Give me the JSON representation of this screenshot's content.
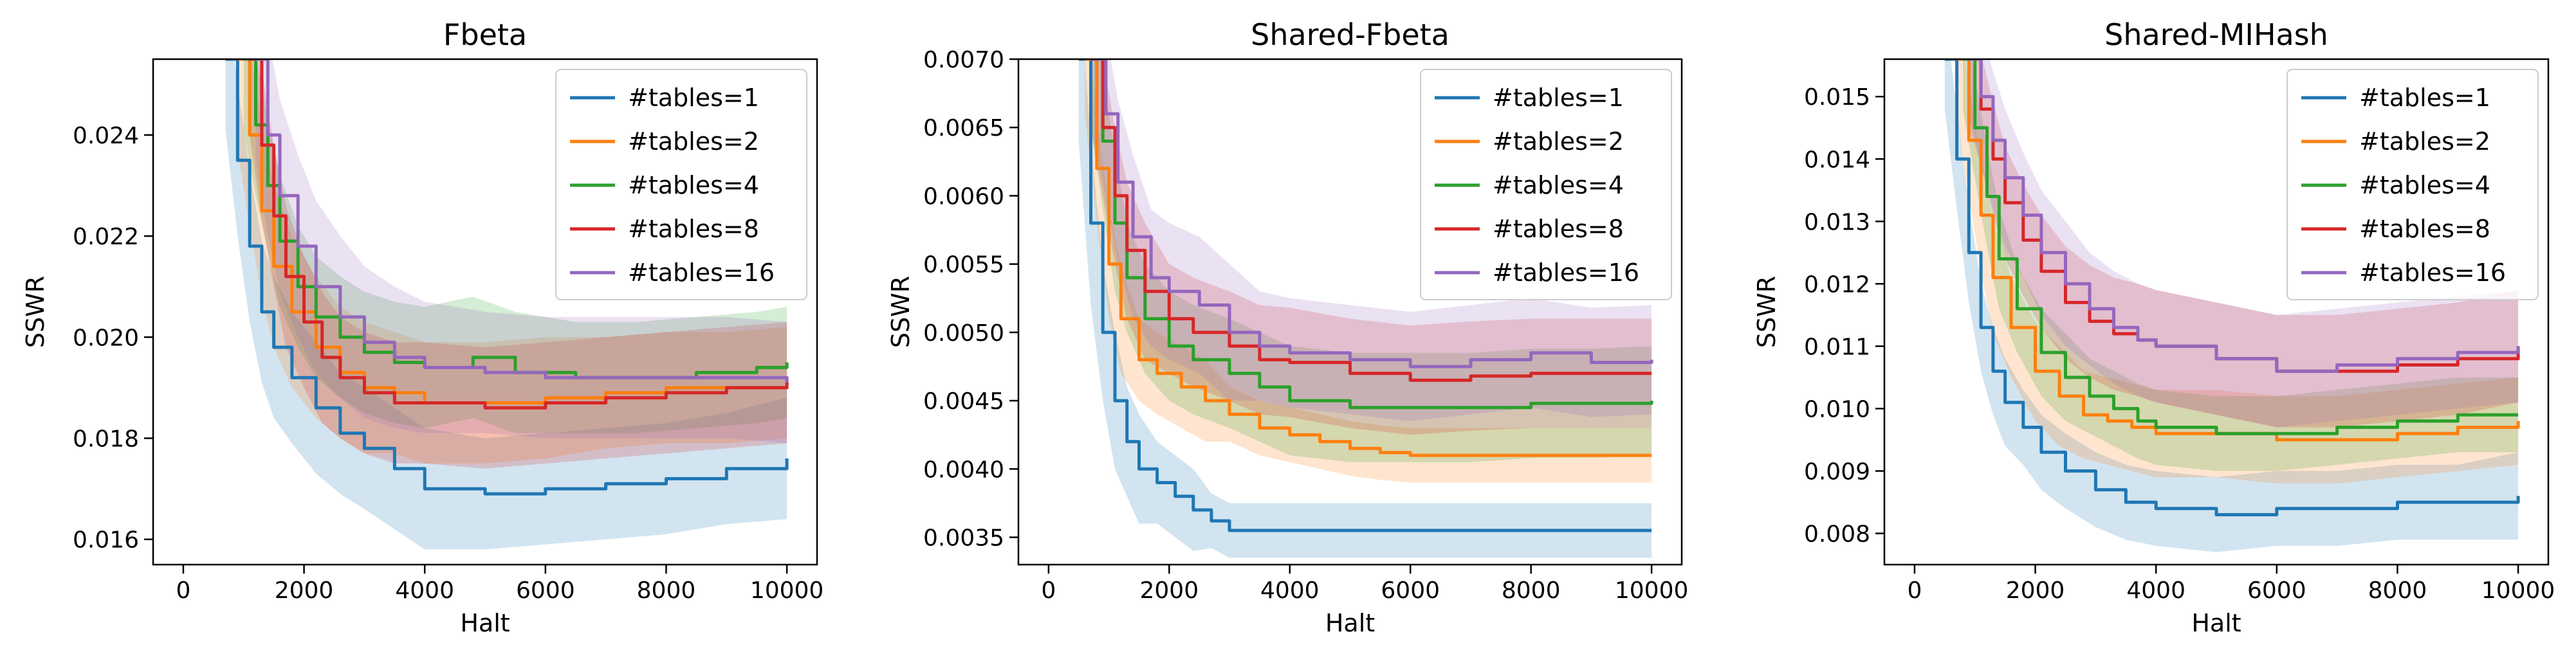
{
  "chart_data": [
    {
      "type": "line",
      "title": "Fbeta",
      "xlabel": "Halt",
      "ylabel": "SSWR",
      "xlim": [
        -500,
        10500
      ],
      "ylim": [
        0.0155,
        0.0255
      ],
      "xticks": [
        0,
        2000,
        4000,
        6000,
        8000,
        10000
      ],
      "xtick_labels": [
        "0",
        "2000",
        "4000",
        "6000",
        "8000",
        "10000"
      ],
      "yticks": [
        0.016,
        0.018,
        0.02,
        0.022,
        0.024
      ],
      "ytick_labels": [
        "0.016",
        "0.018",
        "0.020",
        "0.022",
        "0.024"
      ],
      "legend": "top-right",
      "grid": false,
      "band": "shaded spread around each series",
      "series": [
        {
          "name": "#tables=1",
          "color": "#1f77b4",
          "x": [
            700,
            900,
            1100,
            1300,
            1500,
            1800,
            2200,
            2600,
            3000,
            3500,
            4000,
            5000,
            6000,
            7000,
            8000,
            9000,
            10000
          ],
          "y": [
            0.0255,
            0.0235,
            0.0218,
            0.0205,
            0.0198,
            0.0192,
            0.0186,
            0.0181,
            0.0178,
            0.0174,
            0.017,
            0.0169,
            0.017,
            0.0171,
            0.0172,
            0.0174,
            0.0176
          ],
          "band": [
            0.0014,
            0.0015,
            0.0015,
            0.0014,
            0.0014,
            0.0013,
            0.0013,
            0.0012,
            0.0012,
            0.0012,
            0.0012,
            0.0011,
            0.0011,
            0.0011,
            0.0011,
            0.0011,
            0.0012
          ]
        },
        {
          "name": "#tables=2",
          "color": "#ff7f0e",
          "x": [
            900,
            1100,
            1300,
            1500,
            1800,
            2200,
            2600,
            3000,
            3500,
            4000,
            5000,
            6000,
            7000,
            8000,
            9000,
            10000
          ],
          "y": [
            0.0255,
            0.024,
            0.0225,
            0.0214,
            0.0205,
            0.0198,
            0.0193,
            0.019,
            0.0189,
            0.0187,
            0.0187,
            0.0188,
            0.0189,
            0.019,
            0.019,
            0.0191
          ],
          "band": [
            0.0018,
            0.0018,
            0.0017,
            0.0016,
            0.0015,
            0.0014,
            0.0013,
            0.0013,
            0.0012,
            0.0012,
            0.0012,
            0.0012,
            0.0011,
            0.0011,
            0.0011,
            0.0011
          ]
        },
        {
          "name": "#tables=4",
          "color": "#2ca02c",
          "x": [
            1000,
            1200,
            1400,
            1600,
            1900,
            2200,
            2600,
            3000,
            3500,
            4000,
            4800,
            5500,
            6500,
            7500,
            8500,
            9500,
            10000
          ],
          "y": [
            0.0255,
            0.0242,
            0.023,
            0.0219,
            0.021,
            0.0204,
            0.02,
            0.0197,
            0.0195,
            0.0194,
            0.0196,
            0.0193,
            0.0192,
            0.0192,
            0.0193,
            0.0194,
            0.0195
          ],
          "band": [
            0.0014,
            0.0014,
            0.0013,
            0.0013,
            0.0012,
            0.0012,
            0.0012,
            0.0012,
            0.0012,
            0.0012,
            0.0012,
            0.0012,
            0.0011,
            0.0011,
            0.0011,
            0.0011,
            0.0011
          ]
        },
        {
          "name": "#tables=8",
          "color": "#d62728",
          "x": [
            1100,
            1300,
            1500,
            1700,
            2000,
            2300,
            2600,
            3000,
            3500,
            4000,
            5000,
            6000,
            7000,
            8000,
            9000,
            10000
          ],
          "y": [
            0.0255,
            0.0238,
            0.0224,
            0.0212,
            0.0203,
            0.0196,
            0.0192,
            0.0189,
            0.0187,
            0.0187,
            0.0186,
            0.0187,
            0.0188,
            0.0189,
            0.019,
            0.0191
          ],
          "band": [
            0.0015,
            0.0015,
            0.0014,
            0.0014,
            0.0013,
            0.0013,
            0.0012,
            0.0012,
            0.0012,
            0.0012,
            0.0012,
            0.0012,
            0.0012,
            0.0012,
            0.0012,
            0.0012
          ]
        },
        {
          "name": "#tables=16",
          "color": "#9467bd",
          "x": [
            1200,
            1400,
            1600,
            1900,
            2200,
            2600,
            3000,
            3500,
            4000,
            5000,
            6000,
            7000,
            8000,
            9000,
            10000
          ],
          "y": [
            0.0255,
            0.024,
            0.0228,
            0.0218,
            0.021,
            0.0204,
            0.0199,
            0.0196,
            0.0194,
            0.0193,
            0.0192,
            0.0192,
            0.0192,
            0.0192,
            0.0191
          ],
          "band": [
            0.002,
            0.002,
            0.0019,
            0.0018,
            0.0017,
            0.0016,
            0.0015,
            0.0014,
            0.0013,
            0.0012,
            0.0012,
            0.0012,
            0.0012,
            0.0012,
            0.0012
          ]
        }
      ]
    },
    {
      "type": "line",
      "title": "Shared-Fbeta",
      "xlabel": "Halt",
      "ylabel": "SSWR",
      "xlim": [
        -500,
        10500
      ],
      "ylim": [
        0.0033,
        0.007
      ],
      "xticks": [
        0,
        2000,
        4000,
        6000,
        8000,
        10000
      ],
      "xtick_labels": [
        "0",
        "2000",
        "4000",
        "6000",
        "8000",
        "10000"
      ],
      "yticks": [
        0.0035,
        0.004,
        0.0045,
        0.005,
        0.0055,
        0.006,
        0.0065,
        0.007
      ],
      "ytick_labels": [
        "0.0035",
        "0.0040",
        "0.0045",
        "0.0050",
        "0.0055",
        "0.0060",
        "0.0065",
        "0.0070"
      ],
      "legend": "top-right",
      "grid": false,
      "band": "shaded spread around each series",
      "series": [
        {
          "name": "#tables=1",
          "color": "#1f77b4",
          "x": [
            500,
            700,
            900,
            1100,
            1300,
            1500,
            1800,
            2100,
            2400,
            2700,
            3000,
            4000,
            6000,
            8000,
            10000
          ],
          "y": [
            0.007,
            0.0058,
            0.005,
            0.0045,
            0.0042,
            0.004,
            0.0039,
            0.0038,
            0.0037,
            0.00362,
            0.00355,
            0.00355,
            0.00355,
            0.00355,
            0.00355
          ],
          "band": [
            0.0006,
            0.0006,
            0.0005,
            0.0005,
            0.0004,
            0.0004,
            0.0003,
            0.0003,
            0.0003,
            0.0002,
            0.0002,
            0.0002,
            0.0002,
            0.0002,
            0.0002
          ]
        },
        {
          "name": "#tables=2",
          "color": "#ff7f0e",
          "x": [
            600,
            800,
            1000,
            1200,
            1500,
            1800,
            2200,
            2600,
            3000,
            3500,
            4000,
            4500,
            5000,
            5500,
            6000,
            8000,
            10000
          ],
          "y": [
            0.007,
            0.0062,
            0.0055,
            0.0051,
            0.0048,
            0.0047,
            0.0046,
            0.0045,
            0.0044,
            0.0043,
            0.00425,
            0.0042,
            0.00415,
            0.00412,
            0.0041,
            0.0041,
            0.0041
          ],
          "band": [
            0.0004,
            0.0004,
            0.0004,
            0.0004,
            0.0003,
            0.0003,
            0.0003,
            0.0003,
            0.0002,
            0.0002,
            0.0002,
            0.0002,
            0.0002,
            0.0002,
            0.0002,
            0.0002,
            0.0002
          ]
        },
        {
          "name": "#tables=4",
          "color": "#2ca02c",
          "x": [
            700,
            900,
            1100,
            1300,
            1600,
            2000,
            2400,
            3000,
            3500,
            4000,
            5000,
            6000,
            7000,
            8000,
            9000,
            10000
          ],
          "y": [
            0.007,
            0.0064,
            0.0058,
            0.0054,
            0.0051,
            0.0049,
            0.0048,
            0.0047,
            0.0046,
            0.0045,
            0.00445,
            0.00445,
            0.00445,
            0.00448,
            0.00448,
            0.0045
          ],
          "band": [
            0.0005,
            0.0005,
            0.0005,
            0.0004,
            0.0004,
            0.0004,
            0.0004,
            0.0004,
            0.0004,
            0.0004,
            0.0004,
            0.0004,
            0.0004,
            0.0004,
            0.0004,
            0.0004
          ]
        },
        {
          "name": "#tables=8",
          "color": "#d62728",
          "x": [
            700,
            900,
            1100,
            1300,
            1600,
            2000,
            2400,
            3000,
            3500,
            4000,
            5000,
            6000,
            7000,
            8000,
            9000,
            10000
          ],
          "y": [
            0.007,
            0.0065,
            0.006,
            0.0056,
            0.0053,
            0.0051,
            0.005,
            0.0049,
            0.0048,
            0.00478,
            0.0047,
            0.00465,
            0.00468,
            0.0047,
            0.0047,
            0.0047
          ],
          "band": [
            0.0005,
            0.0005,
            0.0005,
            0.0005,
            0.0005,
            0.0004,
            0.0004,
            0.0004,
            0.0004,
            0.0004,
            0.0004,
            0.0004,
            0.0004,
            0.0004,
            0.0004,
            0.0004
          ]
        },
        {
          "name": "#tables=16",
          "color": "#9467bd",
          "x": [
            750,
            950,
            1150,
            1400,
            1700,
            2000,
            2500,
            3000,
            3500,
            4000,
            5000,
            6000,
            7000,
            8000,
            9000,
            10000
          ],
          "y": [
            0.007,
            0.0066,
            0.0061,
            0.0057,
            0.0054,
            0.0053,
            0.0052,
            0.005,
            0.0049,
            0.00485,
            0.0048,
            0.00475,
            0.0048,
            0.00485,
            0.00478,
            0.0048
          ],
          "band": [
            0.0006,
            0.0006,
            0.0006,
            0.0006,
            0.0005,
            0.0005,
            0.0005,
            0.0005,
            0.0004,
            0.0004,
            0.0004,
            0.0004,
            0.0004,
            0.0004,
            0.0004,
            0.0004
          ]
        }
      ]
    },
    {
      "type": "line",
      "title": "Shared-MIHash",
      "xlabel": "Halt",
      "ylabel": "SSWR",
      "xlim": [
        -500,
        10500
      ],
      "ylim": [
        0.0075,
        0.0156
      ],
      "xticks": [
        0,
        2000,
        4000,
        6000,
        8000,
        10000
      ],
      "xtick_labels": [
        "0",
        "2000",
        "4000",
        "6000",
        "8000",
        "10000"
      ],
      "yticks": [
        0.008,
        0.009,
        0.01,
        0.011,
        0.012,
        0.013,
        0.014,
        0.015
      ],
      "ytick_labels": [
        "0.008",
        "0.009",
        "0.010",
        "0.011",
        "0.012",
        "0.013",
        "0.014",
        "0.015"
      ],
      "legend": "top-right",
      "grid": false,
      "band": "shaded spread around each series",
      "series": [
        {
          "name": "#tables=1",
          "color": "#1f77b4",
          "x": [
            500,
            700,
            900,
            1100,
            1300,
            1500,
            1800,
            2100,
            2500,
            3000,
            3500,
            4000,
            5000,
            6000,
            7000,
            8000,
            9000,
            10000
          ],
          "y": [
            0.0156,
            0.014,
            0.0125,
            0.0113,
            0.0106,
            0.0101,
            0.0097,
            0.0093,
            0.009,
            0.0087,
            0.0085,
            0.0084,
            0.0083,
            0.0084,
            0.0084,
            0.0085,
            0.0085,
            0.0086
          ],
          "band": [
            0.0008,
            0.0008,
            0.0008,
            0.0007,
            0.0007,
            0.0007,
            0.0006,
            0.0006,
            0.0006,
            0.0006,
            0.0006,
            0.0006,
            0.0006,
            0.0006,
            0.0006,
            0.0006,
            0.0006,
            0.0007
          ]
        },
        {
          "name": "#tables=2",
          "color": "#ff7f0e",
          "x": [
            700,
            900,
            1100,
            1300,
            1600,
            2000,
            2400,
            2800,
            3200,
            3600,
            4000,
            5000,
            6000,
            7000,
            8000,
            9000,
            10000
          ],
          "y": [
            0.0156,
            0.0143,
            0.0131,
            0.0121,
            0.0113,
            0.0106,
            0.0102,
            0.0099,
            0.0098,
            0.0097,
            0.0096,
            0.0096,
            0.0095,
            0.0095,
            0.0096,
            0.0097,
            0.0098
          ],
          "band": [
            0.0009,
            0.0009,
            0.0009,
            0.0009,
            0.0008,
            0.0008,
            0.0008,
            0.0007,
            0.0007,
            0.0007,
            0.0007,
            0.0007,
            0.0007,
            0.0007,
            0.0007,
            0.0007,
            0.0007
          ]
        },
        {
          "name": "#tables=4",
          "color": "#2ca02c",
          "x": [
            800,
            1000,
            1200,
            1400,
            1700,
            2100,
            2500,
            2900,
            3300,
            3700,
            4000,
            5000,
            6000,
            7000,
            8000,
            9000,
            10000
          ],
          "y": [
            0.0156,
            0.0145,
            0.0134,
            0.0124,
            0.0116,
            0.0109,
            0.0105,
            0.0102,
            0.01,
            0.0098,
            0.0097,
            0.0096,
            0.0096,
            0.0097,
            0.0098,
            0.0099,
            0.0099
          ],
          "band": [
            0.0008,
            0.0008,
            0.0008,
            0.0008,
            0.0007,
            0.0007,
            0.0007,
            0.0006,
            0.0006,
            0.0006,
            0.0006,
            0.0006,
            0.0006,
            0.0006,
            0.0006,
            0.0006,
            0.0006
          ]
        },
        {
          "name": "#tables=8",
          "color": "#d62728",
          "x": [
            900,
            1100,
            1300,
            1500,
            1800,
            2100,
            2500,
            2900,
            3300,
            3700,
            4000,
            5000,
            6000,
            7000,
            8000,
            9000,
            10000
          ],
          "y": [
            0.0156,
            0.0148,
            0.014,
            0.0133,
            0.0127,
            0.0122,
            0.0117,
            0.0114,
            0.0112,
            0.0111,
            0.011,
            0.0108,
            0.0106,
            0.0106,
            0.0107,
            0.0108,
            0.011
          ],
          "band": [
            0.0009,
            0.0009,
            0.0009,
            0.0009,
            0.0009,
            0.0009,
            0.0009,
            0.0009,
            0.0009,
            0.0009,
            0.0009,
            0.0009,
            0.0009,
            0.0009,
            0.0009,
            0.0009,
            0.0009
          ]
        },
        {
          "name": "#tables=16",
          "color": "#9467bd",
          "x": [
            900,
            1100,
            1300,
            1500,
            1800,
            2100,
            2500,
            2900,
            3300,
            3700,
            4000,
            5000,
            6000,
            7000,
            8000,
            9000,
            10000
          ],
          "y": [
            0.0156,
            0.015,
            0.0143,
            0.0137,
            0.0131,
            0.0125,
            0.012,
            0.0116,
            0.0113,
            0.0111,
            0.011,
            0.0108,
            0.0106,
            0.0107,
            0.0108,
            0.0109,
            0.011
          ],
          "band": [
            0.0011,
            0.0011,
            0.0011,
            0.0011,
            0.001,
            0.001,
            0.001,
            0.0009,
            0.0009,
            0.0009,
            0.0009,
            0.0009,
            0.0009,
            0.0009,
            0.0009,
            0.0009,
            0.0009
          ]
        }
      ]
    }
  ]
}
